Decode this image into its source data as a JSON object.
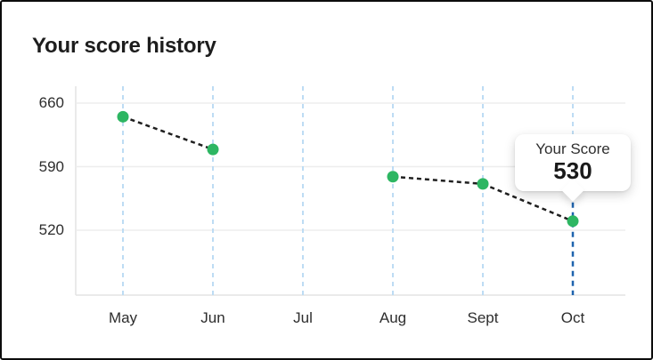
{
  "card": {
    "title": "Your score history"
  },
  "tooltip": {
    "label": "Your Score",
    "value": "530"
  },
  "chart_data": {
    "type": "line",
    "title": "Your score history",
    "categories": [
      "May",
      "Jun",
      "Jul",
      "Aug",
      "Sept",
      "Oct"
    ],
    "series": [
      {
        "name": "Score",
        "values": [
          645,
          609,
          null,
          579,
          571,
          530
        ]
      }
    ],
    "y_ticks": [
      660,
      590,
      520
    ],
    "ylim": [
      455,
      678
    ],
    "xlabel": "",
    "ylabel": "",
    "grid": "horizontal-solid and vertical-dashed",
    "legend": "none",
    "line_style": "dashed black connectors with green point markers, gap at Jul",
    "annotation": {
      "month": "Oct",
      "label": "Your Score",
      "value": 530,
      "style": "white callout with down notch, dark-blue dashed column below point"
    },
    "colors": {
      "point": "#2db662",
      "connector": "#1f1f1f",
      "vertical_grid": "#bddcf4",
      "horizontal_grid": "#ededed",
      "axis": "#e3e3e3",
      "highlight_column": "#1e63ae",
      "title_text": "#1d1d1d",
      "tick_text": "#2d2d2d",
      "tooltip_bg": "#ffffff"
    }
  }
}
